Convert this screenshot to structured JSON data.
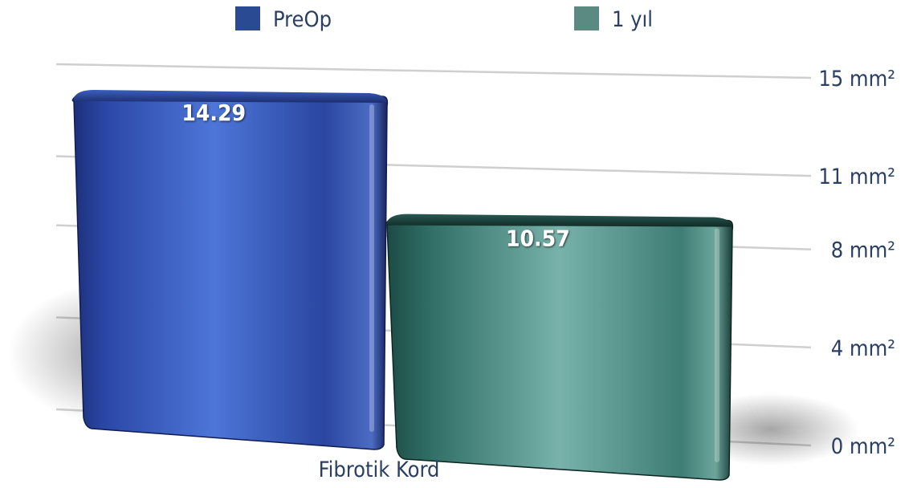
{
  "chart_data": {
    "type": "bar",
    "categories": [
      "Fibrotik Kord"
    ],
    "series": [
      {
        "name": "PreOp",
        "values": [
          14.29
        ],
        "value_labels": [
          "14.29"
        ],
        "color": "#2a4a93"
      },
      {
        "name": "1 yıl",
        "values": [
          10.57
        ],
        "value_labels": [
          "10.57"
        ],
        "color": "#5a8a80"
      }
    ],
    "y_ticks": [
      {
        "value": 0,
        "label": "0 mm²"
      },
      {
        "value": 4,
        "label": "4 mm²"
      },
      {
        "value": 8,
        "label": "8 mm²"
      },
      {
        "value": 11,
        "label": "11 mm²"
      },
      {
        "value": 15,
        "label": "15 mm²"
      }
    ],
    "ylim": [
      0,
      15
    ],
    "y_axis_position": "right",
    "grid": true,
    "legend_position": "top",
    "title": "",
    "xlabel": "",
    "ylabel": ""
  }
}
